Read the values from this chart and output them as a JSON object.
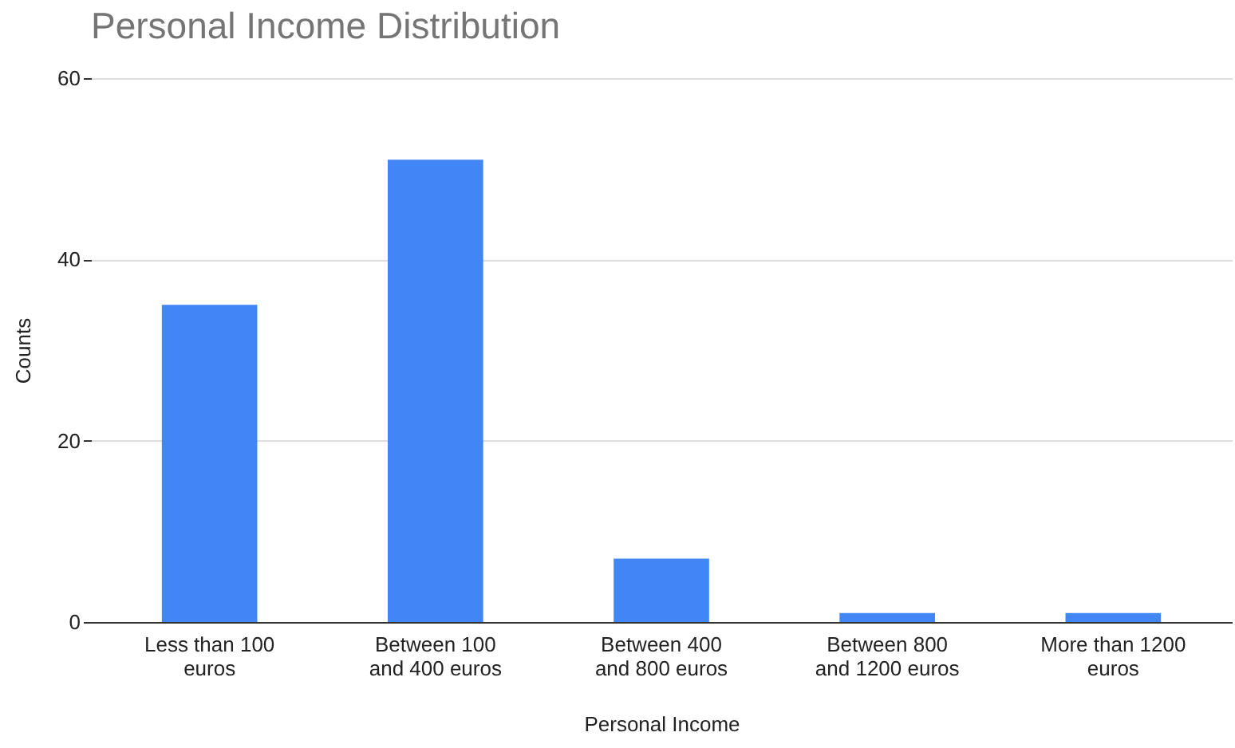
{
  "chart_data": {
    "type": "bar",
    "title": "Personal Income Distribution",
    "xlabel": "Personal Income",
    "ylabel": "Counts",
    "categories": [
      "Less than 100 euros",
      "Between 100 and 400 euros",
      "Between 400 and 800 euros",
      "Between 800 and 1200 euros",
      "More than 1200 euros"
    ],
    "values": [
      35,
      51,
      7,
      1,
      1
    ],
    "color": "#4285f4",
    "ylim": [
      0,
      60
    ],
    "yticks": [
      0,
      20,
      40,
      60
    ],
    "grid": "y"
  }
}
